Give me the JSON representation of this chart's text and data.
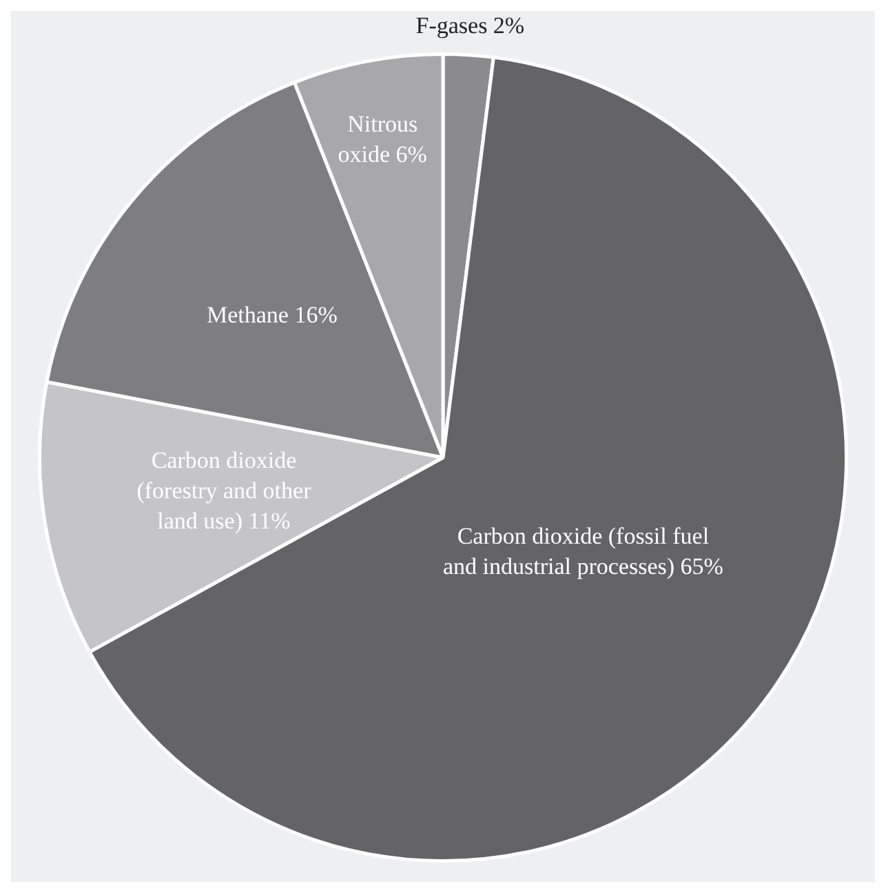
{
  "chart_data": {
    "type": "pie",
    "categories": [
      "F-gases",
      "Carbon dioxide (fossil fuel and industrial processes)",
      "Carbon dioxide (forestry and other land use)",
      "Methane",
      "Nitrous oxide"
    ],
    "values": [
      2,
      65,
      11,
      16,
      6
    ],
    "value_labels": [
      "2%",
      "65%",
      "11%",
      "16%",
      "6%"
    ],
    "colors": [
      "#8b8b8d",
      "#646466",
      "#c5c5c7",
      "#7e7e81",
      "#a8a8aa"
    ],
    "legend": false
  }
}
